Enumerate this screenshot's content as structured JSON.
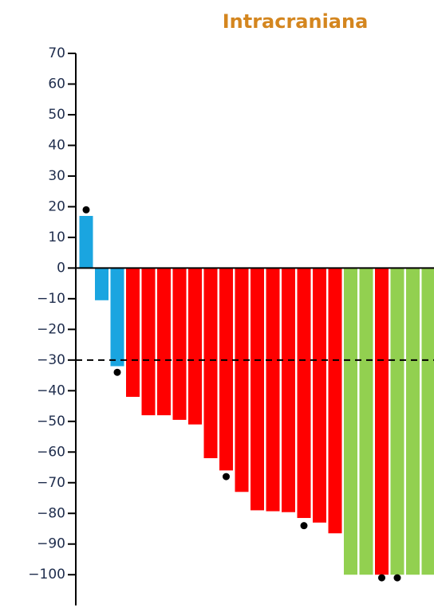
{
  "chart_data": {
    "type": "bar",
    "title": "Intracraniana",
    "values": [
      17,
      -10.5,
      -32,
      -42,
      -48,
      -48,
      -49.5,
      -51,
      -62,
      -66,
      -73,
      -79,
      -79.3,
      -79.6,
      -81.5,
      -83,
      -86.5,
      -100,
      -100,
      -100,
      -100,
      -100,
      -100
    ],
    "colors": [
      "#1aa5e0",
      "#1aa5e0",
      "#1aa5e0",
      "#ff0000",
      "#ff0000",
      "#ff0000",
      "#ff0000",
      "#ff0000",
      "#ff0000",
      "#ff0000",
      "#ff0000",
      "#ff0000",
      "#ff0000",
      "#ff0000",
      "#ff0000",
      "#ff0000",
      "#ff0000",
      "#92d050",
      "#92d050",
      "#ff0000",
      "#92d050",
      "#92d050",
      "#92d050"
    ],
    "markers": [
      19,
      null,
      -34,
      null,
      null,
      null,
      null,
      null,
      null,
      -68,
      null,
      null,
      null,
      null,
      -84,
      null,
      null,
      null,
      null,
      -101,
      -101,
      null,
      null
    ],
    "marker_color": "#000000",
    "reference_line": -30,
    "ylim": [
      -110,
      70
    ],
    "yticks": [
      70,
      60,
      50,
      40,
      30,
      20,
      10,
      0,
      {
        "value": -10,
        "label": "−10"
      },
      {
        "value": -20,
        "label": "−20"
      },
      {
        "value": -30,
        "label": "−30"
      },
      {
        "value": -40,
        "label": "−40"
      },
      {
        "value": -50,
        "label": "−50"
      },
      {
        "value": -60,
        "label": "−60"
      },
      {
        "value": -70,
        "label": "−70"
      },
      {
        "value": -80,
        "label": "−80"
      },
      {
        "value": -90,
        "label": "−90"
      },
      {
        "value": -100,
        "label": "−100"
      }
    ]
  }
}
